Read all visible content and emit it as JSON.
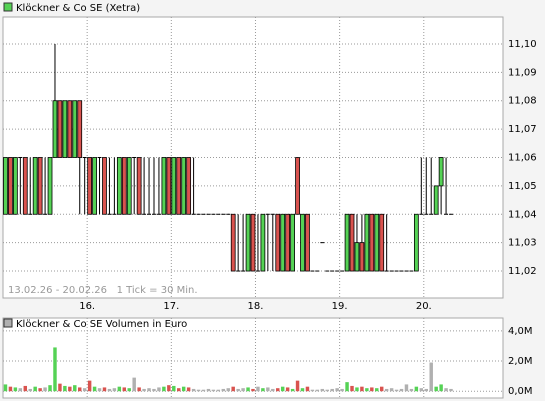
{
  "chart_data": [
    {
      "type": "candlestick",
      "title": "Klöckner & Co SE (Xetra)",
      "annotation": "13.02.26 - 20.02.26   1 Tick = 30 Min.",
      "up_color": "#55d255",
      "down_color": "#d9534f",
      "flat_color": "#000000",
      "grid": true,
      "x": [
        0,
        1,
        2,
        3,
        4,
        5,
        6,
        7,
        8,
        9,
        10,
        11,
        12,
        13,
        14,
        15,
        16,
        17,
        18,
        19,
        20,
        21,
        22,
        23,
        24,
        25,
        26,
        27,
        28,
        29,
        30,
        31,
        32,
        33,
        34,
        35,
        36,
        37,
        38,
        39,
        40,
        41,
        42,
        43,
        44,
        45,
        46,
        47,
        48,
        49,
        50,
        51,
        52,
        53,
        54,
        55,
        56,
        57,
        58,
        59,
        60,
        61,
        62,
        63,
        64,
        65,
        66,
        67,
        68,
        69,
        70,
        71,
        72,
        73,
        74,
        75,
        76,
        77,
        78,
        79,
        80,
        81,
        82,
        83,
        84,
        85,
        86,
        87,
        88,
        89,
        90
      ],
      "open": [
        11.04,
        11.06,
        11.04,
        11.06,
        11.06,
        11.04,
        11.04,
        11.06,
        11.04,
        11.04,
        11.06,
        11.08,
        11.06,
        11.08,
        11.06,
        11.08,
        11.06,
        11.06,
        11.04,
        11.06,
        11.06,
        11.04,
        11.04,
        11.04,
        11.06,
        11.04,
        11.06,
        11.06,
        11.04,
        11.04,
        11.04,
        11.04,
        11.04,
        11.06,
        11.04,
        11.06,
        11.04,
        11.06,
        11.04,
        11.04,
        11.04,
        11.04,
        11.04,
        11.04,
        11.04,
        11.04,
        11.04,
        11.02,
        11.02,
        11.02,
        11.04,
        11.02,
        11.02,
        11.04,
        11.04,
        11.04,
        11.02,
        11.04,
        11.02,
        11.06,
        11.02,
        11.04,
        11.02,
        11.02,
        11.03,
        11.02,
        11.02,
        11.02,
        11.02,
        11.02,
        11.04,
        11.02,
        11.03,
        11.02,
        11.04,
        11.02,
        11.04,
        11.02,
        11.02,
        11.02,
        11.02,
        11.02,
        11.02,
        11.02,
        11.04,
        11.04,
        11.04,
        11.04,
        11.05,
        11.04,
        11.04
      ],
      "high": [
        11.06,
        11.06,
        11.06,
        11.06,
        11.06,
        11.06,
        11.06,
        11.06,
        11.06,
        11.06,
        11.1,
        11.08,
        11.08,
        11.08,
        11.08,
        11.08,
        11.06,
        11.06,
        11.06,
        11.06,
        11.06,
        11.06,
        11.06,
        11.06,
        11.06,
        11.06,
        11.06,
        11.06,
        11.06,
        11.06,
        11.06,
        11.06,
        11.06,
        11.06,
        11.06,
        11.06,
        11.06,
        11.06,
        11.06,
        11.04,
        11.04,
        11.04,
        11.04,
        11.04,
        11.04,
        11.04,
        11.04,
        11.04,
        11.04,
        11.04,
        11.04,
        11.04,
        11.04,
        11.04,
        11.04,
        11.04,
        11.04,
        11.04,
        11.04,
        11.06,
        11.04,
        11.04,
        11.02,
        11.02,
        11.03,
        11.02,
        11.02,
        11.02,
        11.02,
        11.04,
        11.04,
        11.04,
        11.04,
        11.04,
        11.04,
        11.04,
        11.04,
        11.04,
        11.02,
        11.02,
        11.02,
        11.02,
        11.02,
        11.04,
        11.06,
        11.06,
        11.06,
        11.05,
        11.06,
        11.06,
        11.04
      ],
      "low": [
        11.04,
        11.04,
        11.04,
        11.04,
        11.04,
        11.04,
        11.04,
        11.04,
        11.04,
        11.04,
        11.06,
        11.06,
        11.06,
        11.06,
        11.06,
        11.04,
        11.04,
        11.04,
        11.04,
        11.04,
        11.04,
        11.04,
        11.04,
        11.04,
        11.04,
        11.04,
        11.04,
        11.04,
        11.04,
        11.04,
        11.04,
        11.04,
        11.04,
        11.04,
        11.04,
        11.04,
        11.04,
        11.04,
        11.04,
        11.04,
        11.04,
        11.04,
        11.04,
        11.04,
        11.04,
        11.04,
        11.02,
        11.02,
        11.02,
        11.02,
        11.02,
        11.02,
        11.02,
        11.02,
        11.02,
        11.02,
        11.02,
        11.02,
        11.02,
        11.04,
        11.02,
        11.02,
        11.02,
        11.02,
        11.03,
        11.02,
        11.02,
        11.02,
        11.02,
        11.02,
        11.02,
        11.02,
        11.02,
        11.02,
        11.02,
        11.02,
        11.02,
        11.02,
        11.02,
        11.02,
        11.02,
        11.02,
        11.02,
        11.02,
        11.04,
        11.04,
        11.04,
        11.04,
        11.04,
        11.04,
        11.04
      ],
      "close": [
        11.06,
        11.04,
        11.06,
        11.06,
        11.04,
        11.04,
        11.06,
        11.04,
        11.04,
        11.06,
        11.08,
        11.06,
        11.08,
        11.06,
        11.08,
        11.06,
        11.06,
        11.04,
        11.06,
        11.06,
        11.04,
        11.04,
        11.04,
        11.06,
        11.04,
        11.06,
        11.06,
        11.04,
        11.04,
        11.04,
        11.04,
        11.04,
        11.06,
        11.04,
        11.06,
        11.04,
        11.06,
        11.04,
        11.04,
        11.04,
        11.04,
        11.04,
        11.04,
        11.04,
        11.04,
        11.04,
        11.02,
        11.02,
        11.02,
        11.04,
        11.02,
        11.02,
        11.04,
        11.04,
        11.04,
        11.02,
        11.04,
        11.02,
        11.04,
        11.04,
        11.04,
        11.02,
        11.02,
        11.02,
        11.03,
        11.02,
        11.02,
        11.02,
        11.02,
        11.04,
        11.02,
        11.03,
        11.02,
        11.04,
        11.02,
        11.04,
        11.02,
        11.02,
        11.02,
        11.02,
        11.02,
        11.02,
        11.02,
        11.04,
        11.04,
        11.04,
        11.04,
        11.05,
        11.06,
        11.04,
        11.04
      ],
      "xlim": [
        -0.5,
        100.5
      ],
      "xticks": [
        {
          "value": 16.5,
          "label": "16."
        },
        {
          "value": 33.5,
          "label": "17."
        },
        {
          "value": 50.5,
          "label": "18."
        },
        {
          "value": 67.5,
          "label": "19."
        },
        {
          "value": 84.5,
          "label": "20."
        }
      ],
      "ylim": [
        11.0105,
        11.1095
      ],
      "yticks": [
        {
          "value": 11.02,
          "label": "11,02"
        },
        {
          "value": 11.03,
          "label": "11,03"
        },
        {
          "value": 11.04,
          "label": "11,04"
        },
        {
          "value": 11.05,
          "label": "11,05"
        },
        {
          "value": 11.06,
          "label": "11,06"
        },
        {
          "value": 11.07,
          "label": "11,07"
        },
        {
          "value": 11.08,
          "label": "11,08"
        },
        {
          "value": 11.09,
          "label": "11,09"
        },
        {
          "value": 11.1,
          "label": "11,10"
        }
      ]
    },
    {
      "type": "volume",
      "title": "Klöckner & Co SE Volumen in Euro",
      "icon_color": "#b0b0b0",
      "values": [
        450000,
        300000,
        250000,
        200000,
        350000,
        150000,
        300000,
        200000,
        250000,
        400000,
        2900000,
        500000,
        350000,
        300000,
        400000,
        250000,
        200000,
        700000,
        300000,
        200000,
        250000,
        150000,
        200000,
        300000,
        250000,
        200000,
        900000,
        250000,
        150000,
        200000,
        150000,
        250000,
        300000,
        400000,
        350000,
        200000,
        300000,
        250000,
        150000,
        100000,
        100000,
        150000,
        100000,
        100000,
        150000,
        200000,
        300000,
        150000,
        200000,
        250000,
        150000,
        300000,
        200000,
        250000,
        150000,
        200000,
        300000,
        250000,
        150000,
        700000,
        200000,
        300000,
        100000,
        100000,
        150000,
        100000,
        150000,
        200000,
        150000,
        600000,
        350000,
        250000,
        300000,
        200000,
        250000,
        200000,
        300000,
        150000,
        200000,
        100000,
        150000,
        450000,
        150000,
        300000,
        200000,
        150000,
        1900000,
        300000,
        450000,
        200000,
        150000
      ],
      "xlim": [
        -0.5,
        100.5
      ],
      "ylim": [
        -450000,
        4850000
      ],
      "yticks": [
        {
          "value": 0,
          "label": "0,0M"
        },
        {
          "value": 2000000,
          "label": "2,0M"
        },
        {
          "value": 4000000,
          "label": "4,0M"
        }
      ]
    }
  ]
}
